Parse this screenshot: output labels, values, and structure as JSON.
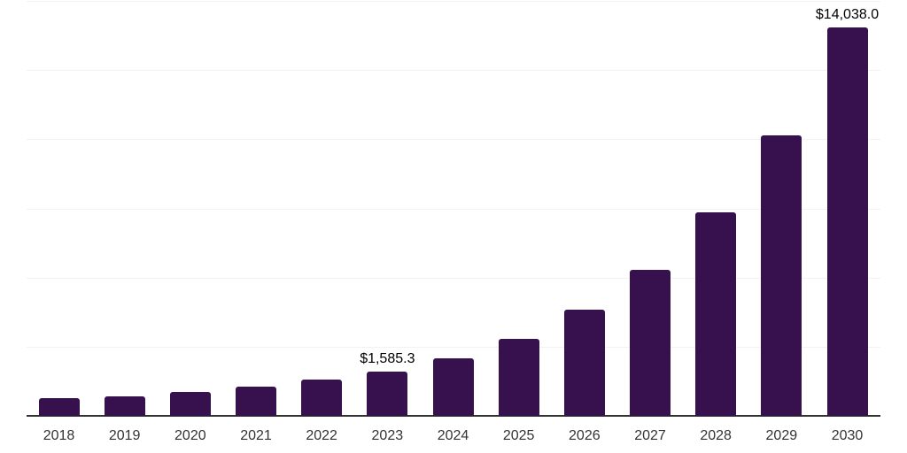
{
  "chart_data": {
    "type": "bar",
    "title": "",
    "xlabel": "",
    "ylabel": "",
    "categories": [
      "2018",
      "2019",
      "2020",
      "2021",
      "2022",
      "2023",
      "2024",
      "2025",
      "2026",
      "2027",
      "2028",
      "2029",
      "2030"
    ],
    "values": [
      630,
      715,
      855,
      1045,
      1300,
      1585.3,
      2080,
      2770,
      3835,
      5270,
      7350,
      10140,
      14038.0
    ],
    "bar_labels": [
      "",
      "",
      "",
      "",
      "",
      "$1,585.3",
      "",
      "",
      "",
      "",
      "",
      "",
      "$14,038.0"
    ],
    "labeled_points": [
      {
        "category": "2023",
        "label": "$1,585.3",
        "value": 1585.3
      },
      {
        "category": "2030",
        "label": "$14,038.0",
        "value": 14038.0
      }
    ],
    "ylim": [
      0,
      15000
    ],
    "gridline_values": [
      2500,
      5000,
      7500,
      10000,
      12500,
      15000
    ],
    "grid": true,
    "legend": false,
    "y_axis_labels_visible": false,
    "colors": {
      "bar": "#37114E",
      "axis_line": "#333333",
      "gridline": "#F2F2F2",
      "tick_label": "#333333",
      "data_label": "#000000",
      "background": "#FFFFFF"
    }
  }
}
